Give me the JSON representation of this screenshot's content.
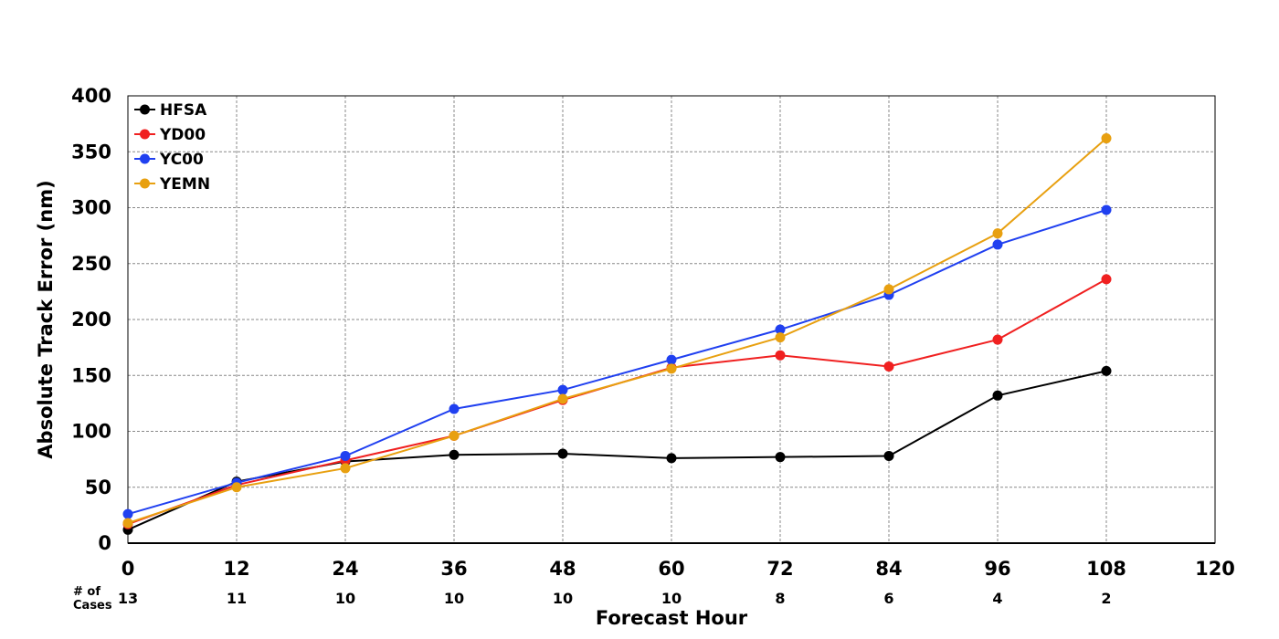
{
  "chart_data": {
    "type": "line",
    "xlabel": "Forecast Hour",
    "ylabel": "Absolute Track Error (nm)",
    "xlim": [
      0,
      120
    ],
    "ylim": [
      0,
      400
    ],
    "x_ticks": [
      0,
      12,
      24,
      36,
      48,
      60,
      72,
      84,
      96,
      108,
      120
    ],
    "y_ticks": [
      0,
      50,
      100,
      150,
      200,
      250,
      300,
      350,
      400
    ],
    "grid": true,
    "legend_position": "top-left",
    "x": [
      0,
      12,
      24,
      36,
      48,
      60,
      72,
      84,
      96,
      108
    ],
    "series": [
      {
        "name": "HFSA",
        "color": "#000000",
        "values": [
          12,
          55,
          73,
          79,
          80,
          76,
          77,
          78,
          132,
          154
        ]
      },
      {
        "name": "YD00",
        "color": "#f02020",
        "values": [
          17,
          52,
          74,
          96,
          128,
          157,
          168,
          158,
          182,
          236
        ]
      },
      {
        "name": "YC00",
        "color": "#2040f0",
        "values": [
          26,
          54,
          78,
          120,
          137,
          164,
          191,
          222,
          267,
          298
        ]
      },
      {
        "name": "YEMN",
        "color": "#e8a010",
        "values": [
          18,
          50,
          67,
          96,
          129,
          156,
          184,
          227,
          277,
          362
        ]
      }
    ],
    "cases_label": "# of\nCases",
    "cases": [
      13,
      11,
      10,
      10,
      10,
      10,
      8,
      6,
      4,
      2
    ]
  }
}
